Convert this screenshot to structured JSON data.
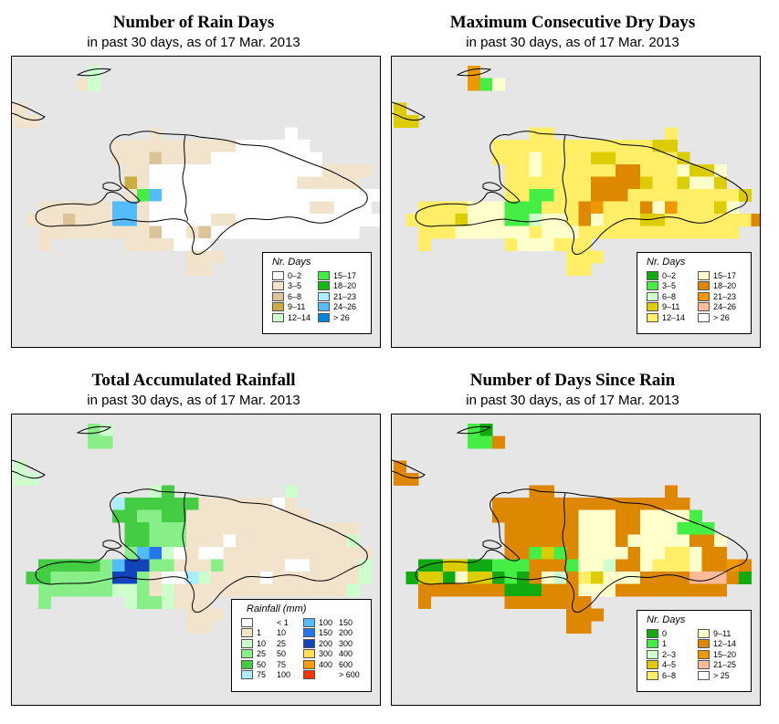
{
  "panels": [
    {
      "id": "rain_days",
      "title": "Number of Rain Days",
      "subtitle": "in past 30 days, as of  17 Mar. 2013",
      "legend_title": "Nr. Days",
      "legend": [
        {
          "label": "0–2",
          "color": "#ffffff"
        },
        {
          "label": "3–5",
          "color": "#f2e4cc"
        },
        {
          "label": "6–8",
          "color": "#dcc49a"
        },
        {
          "label": "9–11",
          "color": "#ccaa44"
        },
        {
          "label": "12–14",
          "color": "#ccffcc"
        },
        {
          "label": "15–17",
          "color": "#44ee44"
        },
        {
          "label": "18–20",
          "color": "#11bb11"
        },
        {
          "label": "21–23",
          "color": "#aaeeff"
        },
        {
          "label": "24–26",
          "color": "#55bbff"
        },
        {
          "label": "> 26",
          "color": "#0088dd"
        }
      ]
    },
    {
      "id": "dry_days",
      "title": "Maximum Consecutive Dry Days",
      "subtitle": "in past 30 days, as of  17 Mar. 2013",
      "legend_title": "Nr. Days",
      "legend": [
        {
          "label": "0–2",
          "color": "#11aa11"
        },
        {
          "label": "3–5",
          "color": "#44ee44"
        },
        {
          "label": "6–8",
          "color": "#ccffcc"
        },
        {
          "label": "9–11",
          "color": "#ddcc00"
        },
        {
          "label": "12–14",
          "color": "#ffee66"
        },
        {
          "label": "15–17",
          "color": "#ffffcc"
        },
        {
          "label": "18–20",
          "color": "#dd8800"
        },
        {
          "label": "21–23",
          "color": "#ee9900"
        },
        {
          "label": "24–26",
          "color": "#ffbb99"
        },
        {
          "label": "> 26",
          "color": "#ffffff"
        }
      ]
    },
    {
      "id": "rainfall",
      "title": "Total Accumulated Rainfall",
      "subtitle": "in past 30 days, as of  17 Mar. 2013",
      "legend_title": "Rainfall (mm)",
      "legend": [
        {
          "lo": "",
          "hi": "< 1",
          "color": "#ffffff"
        },
        {
          "lo": "1",
          "hi": "10",
          "color": "#f2e4cc"
        },
        {
          "lo": "10",
          "hi": "25",
          "color": "#ccffcc"
        },
        {
          "lo": "25",
          "hi": "50",
          "color": "#88ee88"
        },
        {
          "lo": "50",
          "hi": "75",
          "color": "#44cc44"
        },
        {
          "lo": "75",
          "hi": "100",
          "color": "#aaeeff"
        },
        {
          "lo": "100",
          "hi": "150",
          "color": "#55bbff"
        },
        {
          "lo": "150",
          "hi": "200",
          "color": "#2277ee"
        },
        {
          "lo": "200",
          "hi": "300",
          "color": "#1144bb"
        },
        {
          "lo": "300",
          "hi": "400",
          "color": "#ffdd55"
        },
        {
          "lo": "400",
          "hi": "600",
          "color": "#ff9900"
        },
        {
          "lo": "",
          "hi": "> 600",
          "color": "#ff3300"
        }
      ]
    },
    {
      "id": "since_rain",
      "title": "Number of Days Since Rain",
      "subtitle": "in past 30 days, as of  17 Mar. 2013",
      "legend_title": "Nr. Days",
      "legend": [
        {
          "label": "0",
          "color": "#11aa11"
        },
        {
          "label": "1",
          "color": "#44ee44"
        },
        {
          "label": "2–3",
          "color": "#ccffcc"
        },
        {
          "label": "4–5",
          "color": "#ddcc00"
        },
        {
          "label": "6–8",
          "color": "#ffee66"
        },
        {
          "label": "9–11",
          "color": "#ffffcc"
        },
        {
          "label": "12–14",
          "color": "#dd8800"
        },
        {
          "label": "15–20",
          "color": "#ee9900"
        },
        {
          "label": "21–25",
          "color": "#ffbb99"
        },
        {
          "label": "> 25",
          "color": "#ffffff"
        }
      ]
    }
  ]
}
